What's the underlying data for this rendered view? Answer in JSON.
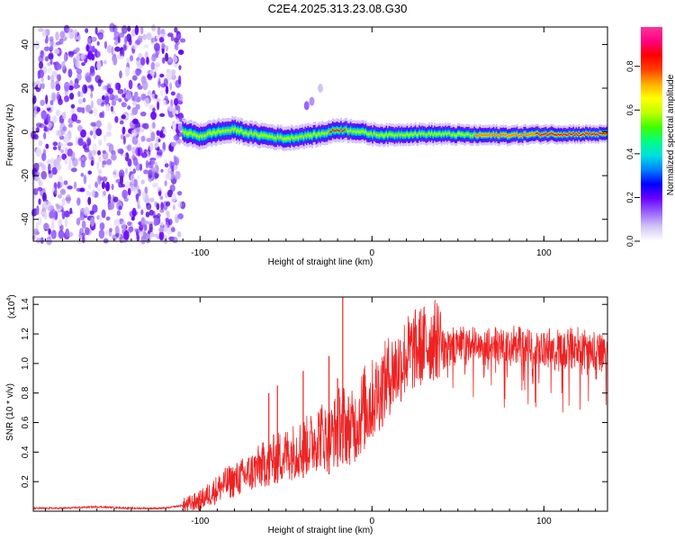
{
  "title": "C2E4.2025.313.23.08.G30",
  "chart_data": [
    {
      "type": "heatmap",
      "name": "spectrogram",
      "xlabel": "Height of straight line (km)",
      "ylabel": "Frequency (Hz)",
      "xlim": [
        -197,
        137
      ],
      "ylim": [
        -50,
        48
      ],
      "xticks": [
        -100,
        0,
        100
      ],
      "xtick_labels": [
        "-100",
        "0",
        "100"
      ],
      "yticks": [
        -40,
        -20,
        0,
        20,
        40
      ],
      "ytick_labels": [
        "-40",
        "-20",
        "0",
        "20",
        "40"
      ],
      "noise_region": {
        "x_range": [
          -197,
          -110
        ],
        "freq_range": [
          -50,
          48
        ]
      },
      "signal_band_center_hz": [
        [
          -110,
          0
        ],
        [
          -100,
          -2
        ],
        [
          -90,
          0
        ],
        [
          -80,
          1
        ],
        [
          -70,
          -1
        ],
        [
          -60,
          -2
        ],
        [
          -50,
          -3
        ],
        [
          -40,
          -2
        ],
        [
          -30,
          -1
        ],
        [
          -20,
          1
        ],
        [
          -10,
          0.5
        ],
        [
          0,
          -1
        ],
        [
          10,
          -1.5
        ],
        [
          20,
          -1
        ],
        [
          40,
          -1
        ],
        [
          60,
          -1.5
        ],
        [
          80,
          -1.5
        ],
        [
          100,
          -1
        ],
        [
          120,
          -1
        ],
        [
          137,
          -1
        ]
      ],
      "colorbar": {
        "label": "Normalized spectral amplitude",
        "min": 0.0,
        "max": 0.98,
        "ticks": [
          0.0,
          0.2,
          0.4,
          0.6,
          0.8
        ],
        "tick_labels": [
          "0.0",
          "0.2",
          "0.4",
          "0.6",
          "0.8"
        ],
        "colors": [
          "#ffffff",
          "#d4c8f4",
          "#9966ff",
          "#6a00ff",
          "#0000ff",
          "#0080ff",
          "#00e0e0",
          "#00ff80",
          "#40ff00",
          "#c0ff00",
          "#ffff00",
          "#ffb000",
          "#ff4000",
          "#ff0000",
          "#ff0080",
          "#ff3399"
        ]
      }
    },
    {
      "type": "line",
      "name": "snr",
      "series_name": "SNR",
      "color": "#ee2222",
      "xlabel": "Height of straight line (km)",
      "ylabel": "SNR (10 * v/v)",
      "scale_label": "(x10",
      "scale_exponent": "4",
      "scale_close": ")",
      "xlim": [
        -197,
        137
      ],
      "ylim": [
        0,
        1.45
      ],
      "xticks": [
        -100,
        0,
        100
      ],
      "xtick_labels": [
        "-100",
        "0",
        "100"
      ],
      "yticks": [
        0.2,
        0.4,
        0.6,
        0.8,
        1.0,
        1.2,
        1.4
      ],
      "ytick_labels": [
        "0.2",
        "0.4",
        "0.6",
        "0.8",
        "1.0",
        "1.2",
        "1.4"
      ],
      "x": [
        -197,
        -180,
        -160,
        -140,
        -120,
        -110,
        -100,
        -95,
        -90,
        -85,
        -80,
        -75,
        -70,
        -65,
        -60,
        -55,
        -50,
        -45,
        -40,
        -35,
        -30,
        -25,
        -20,
        -17,
        -15,
        -10,
        -5,
        0,
        5,
        10,
        15,
        20,
        25,
        30,
        35,
        40,
        45,
        50,
        60,
        70,
        80,
        90,
        100,
        110,
        120,
        130,
        137
      ],
      "y": [
        0.02,
        0.02,
        0.03,
        0.02,
        0.02,
        0.04,
        0.08,
        0.12,
        0.16,
        0.2,
        0.22,
        0.25,
        0.28,
        0.32,
        0.35,
        0.38,
        0.4,
        0.43,
        0.45,
        0.48,
        0.55,
        0.5,
        0.6,
        0.65,
        0.58,
        0.6,
        0.72,
        0.78,
        0.85,
        0.95,
        1.0,
        1.08,
        1.12,
        1.15,
        1.18,
        1.2,
        1.2,
        1.22,
        1.21,
        1.2,
        1.22,
        1.2,
        1.2,
        1.18,
        1.2,
        1.18,
        1.18
      ],
      "peaks": [
        [
          -17,
          1.45
        ],
        [
          -20,
          0.9
        ],
        [
          -25,
          1.05
        ],
        [
          -40,
          0.95
        ],
        [
          -60,
          0.8
        ],
        [
          -55,
          0.85
        ]
      ]
    }
  ]
}
